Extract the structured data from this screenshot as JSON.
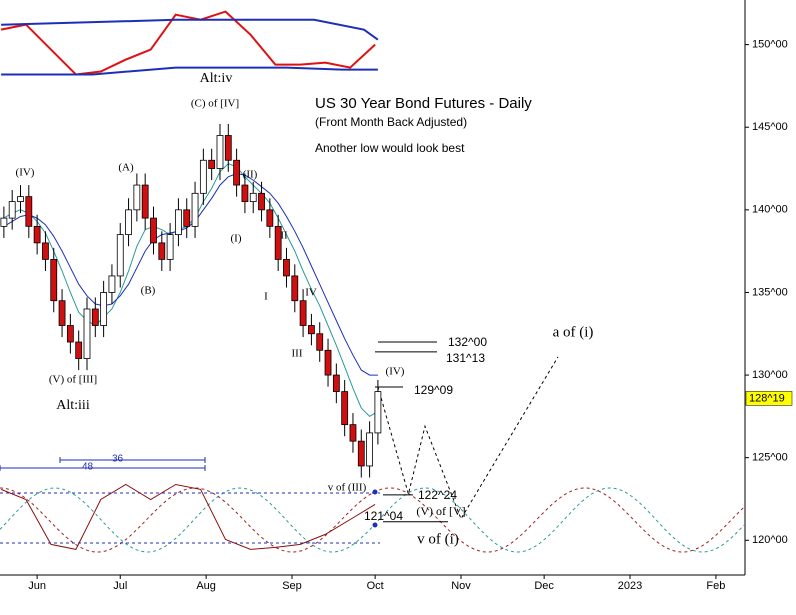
{
  "chart_data": {
    "type": "candlestick",
    "title": "US 30 Year Bond Futures - Daily",
    "subtitle": "(Front Month Back Adjusted)",
    "note": "Another low would look best",
    "xlim": [
      -13.4,
      255.5
    ],
    "xticks": [
      {
        "value": 0,
        "label": "Jun"
      },
      {
        "value": 30,
        "label": "Jul"
      },
      {
        "value": 61,
        "label": "Aug"
      },
      {
        "value": 92,
        "label": "Sep"
      },
      {
        "value": 122,
        "label": "Oct"
      },
      {
        "value": 153,
        "label": "Nov"
      },
      {
        "value": 183,
        "label": "Dec"
      },
      {
        "value": 214,
        "label": "2023"
      },
      {
        "value": 245,
        "label": "Feb"
      }
    ],
    "ylim": [
      117.9,
      152.7
    ],
    "yticks": [
      {
        "value": 120,
        "label": "120^00"
      },
      {
        "value": 125,
        "label": "125^00"
      },
      {
        "value": 130,
        "label": "130^00"
      },
      {
        "value": 135,
        "label": "135^00"
      },
      {
        "value": 140,
        "label": "140^00"
      },
      {
        "value": 145,
        "label": "145^00"
      },
      {
        "value": 150,
        "label": "150^00"
      }
    ],
    "x": [
      -12,
      -9,
      -6,
      -3,
      0,
      3,
      6,
      9,
      12,
      15,
      18,
      21,
      24,
      27,
      30,
      33,
      36,
      39,
      42,
      45,
      48,
      51,
      54,
      57,
      60,
      63,
      66,
      69,
      72,
      75,
      78,
      81,
      84,
      87,
      90,
      93,
      96,
      99,
      102,
      105,
      108,
      111,
      114,
      117,
      120,
      123
    ],
    "open": [
      139.0,
      139.5,
      140.5,
      140.8,
      139.0,
      138.0,
      137.0,
      134.5,
      133.0,
      132.0,
      131.0,
      134.0,
      133.0,
      135.0,
      136.0,
      138.5,
      140.0,
      141.5,
      139.5,
      138.0,
      137.0,
      138.5,
      140.0,
      139.0,
      141.0,
      143.0,
      142.5,
      144.5,
      143.0,
      141.5,
      140.5,
      141.0,
      140.0,
      139.0,
      137.0,
      136.0,
      134.5,
      133.0,
      132.5,
      131.5,
      130.0,
      129.0,
      127.0,
      126.0,
      124.5,
      126.5
    ],
    "high": [
      140.2,
      141.2,
      141.5,
      141.5,
      139.7,
      138.7,
      137.7,
      135.2,
      133.7,
      132.7,
      134.7,
      134.7,
      135.7,
      136.7,
      139.2,
      140.7,
      142.2,
      142.2,
      140.2,
      138.7,
      139.2,
      140.7,
      140.7,
      141.7,
      143.7,
      143.7,
      145.2,
      145.2,
      143.7,
      142.2,
      141.7,
      141.7,
      140.7,
      139.7,
      137.7,
      136.7,
      135.2,
      133.7,
      133.2,
      132.2,
      130.7,
      129.7,
      127.7,
      126.7,
      127.2,
      129.7
    ],
    "low": [
      138.3,
      138.8,
      139.8,
      138.3,
      137.3,
      136.3,
      133.8,
      132.3,
      131.3,
      130.3,
      130.3,
      132.3,
      132.3,
      134.3,
      135.3,
      137.8,
      139.3,
      138.8,
      137.3,
      136.3,
      136.3,
      137.8,
      138.3,
      138.3,
      140.3,
      141.8,
      141.8,
      142.3,
      140.8,
      139.8,
      139.8,
      139.3,
      138.3,
      136.3,
      135.3,
      133.8,
      132.3,
      131.8,
      130.8,
      129.3,
      128.3,
      126.3,
      125.3,
      123.8,
      123.8,
      125.8
    ],
    "close": [
      139.5,
      140.5,
      140.8,
      139.0,
      138.0,
      137.0,
      134.5,
      133.0,
      132.0,
      131.0,
      134.0,
      133.0,
      135.0,
      136.0,
      138.5,
      140.0,
      141.5,
      139.5,
      138.0,
      137.0,
      138.5,
      140.0,
      139.0,
      141.0,
      143.0,
      142.5,
      144.5,
      143.0,
      141.5,
      140.5,
      141.0,
      140.0,
      139.0,
      137.0,
      136.0,
      134.5,
      133.0,
      132.5,
      131.5,
      130.0,
      129.0,
      127.0,
      126.0,
      124.5,
      126.5,
      129.0
    ],
    "series": [
      {
        "color": "#2a9a9a",
        "x": [
          -12,
          -9,
          -6,
          -3,
          0,
          3,
          6,
          9,
          12,
          15,
          18,
          21,
          24,
          27,
          30,
          33,
          36,
          39,
          42,
          45,
          48,
          51,
          54,
          57,
          60,
          63,
          66,
          69,
          72,
          75,
          78,
          81,
          84,
          87,
          90,
          93,
          96,
          99,
          102,
          105,
          108,
          111,
          114,
          117,
          120,
          123
        ],
        "values": [
          139.5,
          139.8,
          140,
          139.8,
          139.3,
          138.6,
          137.5,
          136.3,
          135,
          133.8,
          133.3,
          133,
          133.5,
          134,
          135,
          136.3,
          137.8,
          138.8,
          139,
          138.8,
          138.5,
          138.8,
          139,
          139.5,
          140.5,
          141.3,
          142.3,
          142.8,
          142.6,
          142,
          141.5,
          141,
          140.4,
          139.5,
          138.5,
          137.5,
          136.3,
          135.2,
          134.2,
          133,
          131.8,
          130.5,
          129.2,
          128,
          127.5,
          127.8
        ]
      },
      {
        "color": "#1c2fb8",
        "x": [
          -12,
          -9,
          -6,
          -3,
          0,
          3,
          6,
          9,
          12,
          15,
          18,
          21,
          24,
          27,
          30,
          33,
          36,
          39,
          42,
          45,
          48,
          51,
          54,
          57,
          60,
          63,
          66,
          69,
          72,
          75,
          78,
          81,
          84,
          87,
          90,
          93,
          96,
          99,
          102,
          105,
          108,
          111,
          114,
          117,
          120,
          123
        ],
        "values": [
          139,
          139.3,
          139.6,
          139.7,
          139.5,
          139.1,
          138.4,
          137.5,
          136.5,
          135.5,
          134.8,
          134.3,
          134.2,
          134.3,
          134.8,
          135.5,
          136.5,
          137.5,
          138.2,
          138.5,
          138.6,
          138.7,
          138.9,
          139.3,
          140,
          140.7,
          141.5,
          142,
          142.2,
          142.1,
          141.8,
          141.4,
          141,
          140.4,
          139.6,
          138.7,
          137.7,
          136.6,
          135.5,
          134.4,
          133.3,
          132.2,
          131.2,
          130.3,
          130,
          130
        ]
      },
      {
        "color": "#e01010",
        "x": [
          -13,
          -4,
          5,
          14,
          23,
          32,
          41,
          50,
          59,
          68,
          77,
          86,
          95,
          104,
          113,
          122
        ],
        "values": [
          150.91,
          151.21,
          149.7,
          148.19,
          148.37,
          149.09,
          149.7,
          151.81,
          151.51,
          152.0,
          150.6,
          148.79,
          148.79,
          148.91,
          148.61,
          150.0
        ]
      },
      {
        "color": "#1c2fb8",
        "x": [
          -13,
          50,
          100,
          118,
          123
        ],
        "values": [
          151.2,
          151.5,
          151.5,
          150.9,
          150.3
        ]
      },
      {
        "color": "#1c2fb8",
        "x": [
          -13,
          20,
          50,
          90,
          110,
          123
        ],
        "values": [
          148.19,
          148.19,
          148.61,
          148.61,
          148.49,
          148.49
        ]
      },
      {
        "color": "#8b1010",
        "x": [
          -13,
          -4,
          5,
          14,
          23,
          32,
          41,
          50,
          59,
          68,
          77,
          86,
          95,
          104,
          113,
          122
        ],
        "values": [
          123.08,
          122.47,
          119.75,
          119.45,
          122.47,
          123.38,
          122.47,
          123.38,
          123.08,
          120.05,
          119.45,
          119.57,
          119.75,
          120.36,
          121.26,
          122.17
        ]
      },
      {
        "color": "#000000",
        "dashed": true,
        "x": [
          123,
          134,
          140,
          153,
          188
        ],
        "values": [
          129.3,
          122.8,
          126.9,
          121.3,
          131.1
        ]
      }
    ],
    "levels": [
      {
        "value": 132,
        "label": "132^00"
      },
      {
        "value": 131.406,
        "label": "131^13"
      },
      {
        "value": 129.281,
        "label": "129^09"
      },
      {
        "value": 122.75,
        "label": "122^24"
      },
      {
        "value": 121.125,
        "label": "121^04"
      }
    ],
    "current_price": {
      "value": 128.59,
      "label": "128^19",
      "color": "#ffff00"
    },
    "spans": [
      36,
      48
    ],
    "annotations": [
      "(IV)",
      "(A)",
      "(C) of [IV]",
      "(II)",
      "(I)",
      "II",
      "I",
      "IV",
      "III",
      "(B)",
      "(V) of [III]",
      "Alt:iii",
      "Alt:iv",
      "(IV)",
      "v of (III)",
      "(V) of [V]",
      "v of (i)",
      "a of (i)"
    ]
  }
}
